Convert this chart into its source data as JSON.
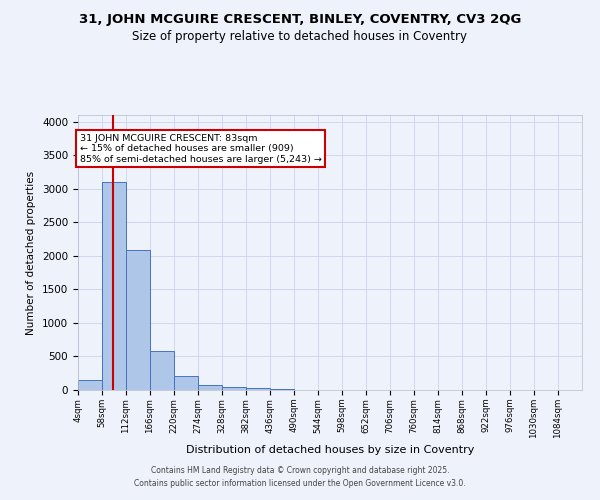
{
  "title1": "31, JOHN MCGUIRE CRESCENT, BINLEY, COVENTRY, CV3 2QG",
  "title2": "Size of property relative to detached houses in Coventry",
  "xlabel": "Distribution of detached houses by size in Coventry",
  "ylabel": "Number of detached properties",
  "bin_edges": [
    4,
    58,
    112,
    166,
    220,
    274,
    328,
    382,
    436,
    490,
    544,
    598,
    652,
    706,
    760,
    814,
    868,
    922,
    976,
    1030,
    1084
  ],
  "bar_heights": [
    150,
    3100,
    2090,
    575,
    215,
    68,
    42,
    28,
    18,
    5,
    0,
    0,
    0,
    0,
    0,
    0,
    0,
    0,
    0,
    0
  ],
  "bar_color": "#aec6e8",
  "bar_edge_color": "#4472c4",
  "grid_color": "#d0d8f0",
  "bg_color": "#eef2fb",
  "red_line_x": 83,
  "annotation_title": "31 JOHN MCGUIRE CRESCENT: 83sqm",
  "annotation_line1": "← 15% of detached houses are smaller (909)",
  "annotation_line2": "85% of semi-detached houses are larger (5,243) →",
  "annotation_box_color": "#ffffff",
  "annotation_border_color": "#cc0000",
  "red_line_color": "#cc0000",
  "ylim": [
    0,
    4100
  ],
  "yticks": [
    0,
    500,
    1000,
    1500,
    2000,
    2500,
    3000,
    3500,
    4000
  ],
  "footer1": "Contains HM Land Registry data © Crown copyright and database right 2025.",
  "footer2": "Contains public sector information licensed under the Open Government Licence v3.0."
}
